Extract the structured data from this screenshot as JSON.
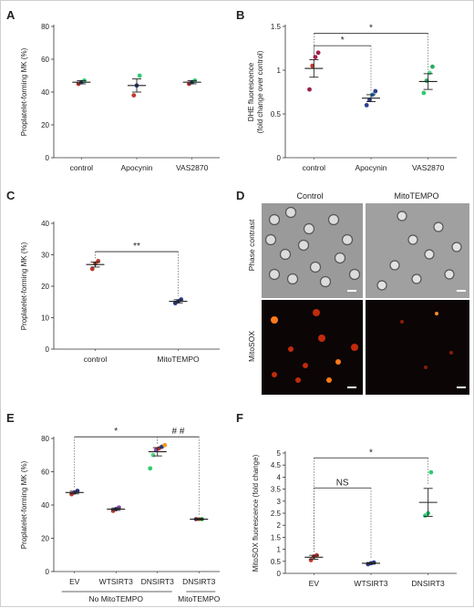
{
  "panels": {
    "A": "A",
    "B": "B",
    "C": "C",
    "D": "D",
    "E": "E",
    "F": "F"
  },
  "chart_data": [
    {
      "id": "A",
      "type": "scatter",
      "ylabel": "Proplatelet-forming MK (%)",
      "ylim": [
        0,
        80
      ],
      "yticks": [
        0,
        20,
        40,
        60,
        80
      ],
      "categories": [
        "control",
        "Apocynin",
        "VAS2870"
      ],
      "groups": [
        {
          "points": [
            45,
            46,
            47
          ],
          "colors": [
            "#c0392b",
            "#2c3e8f",
            "#2ecc71"
          ],
          "mean": 46,
          "sem": 1
        },
        {
          "points": [
            38,
            44,
            50
          ],
          "colors": [
            "#c0392b",
            "#2c3e8f",
            "#2ecc71"
          ],
          "mean": 44,
          "sem": 4
        },
        {
          "points": [
            45,
            46,
            47
          ],
          "colors": [
            "#c0392b",
            "#2c3e8f",
            "#2ecc71"
          ],
          "mean": 46,
          "sem": 1
        }
      ],
      "pointColors": [
        "#c0392b",
        "#2c3e8f",
        "#2ecc71"
      ],
      "significance": []
    },
    {
      "id": "B",
      "type": "scatter",
      "ylabel": "DHE fluorescence\n(fold change over control)",
      "ylim": [
        0,
        1.5
      ],
      "yticks": [
        0,
        0.5,
        1,
        1.5
      ],
      "categories": [
        "control",
        "Apocynin",
        "VAS2870"
      ],
      "groups": [
        {
          "points": [
            0.78,
            1.05,
            1.15,
            1.2
          ],
          "colors": [
            "#a01f4a",
            "#c0392b",
            "#a01f4a",
            "#a01f4a"
          ],
          "mean": 1.02,
          "sem": 0.1
        },
        {
          "points": [
            0.6,
            0.66,
            0.72,
            0.76
          ],
          "colors": [
            "#2c3e8f",
            "#2c3e8f",
            "#1f77b4",
            "#2c3e8f"
          ],
          "mean": 0.68,
          "sem": 0.04
        },
        {
          "points": [
            0.74,
            0.88,
            0.97,
            1.04
          ],
          "colors": [
            "#2ecc71",
            "#27ae60",
            "#58d68d",
            "#27ae60"
          ],
          "mean": 0.87,
          "sem": 0.09
        }
      ],
      "significance": [
        {
          "from": 0,
          "to": 1,
          "label": "*",
          "level": 1.28
        },
        {
          "from": 0,
          "to": 2,
          "label": "*",
          "level": 1.42
        }
      ]
    },
    {
      "id": "C",
      "type": "scatter",
      "ylabel": "Proplatelet-forming MK (%)",
      "ylim": [
        0,
        40
      ],
      "yticks": [
        0,
        10,
        20,
        30,
        40
      ],
      "categories": [
        "control",
        "MitoTEMPO"
      ],
      "groups": [
        {
          "points": [
            25.5,
            27.2,
            28.0
          ],
          "colors": [
            "#c0392b",
            "#c0392b",
            "#c0392b"
          ],
          "mean": 26.9,
          "sem": 0.8
        },
        {
          "points": [
            14.6,
            15.2,
            15.8
          ],
          "colors": [
            "#2c3e8f",
            "#2c3e8f",
            "#2c3e8f"
          ],
          "mean": 15.2,
          "sem": 0.5
        }
      ],
      "significance": [
        {
          "from": 0,
          "to": 1,
          "label": "**",
          "level": 31
        }
      ]
    },
    {
      "id": "E",
      "type": "scatter",
      "ylabel": "Proplatelet-forming MK (%)",
      "ylim": [
        0,
        80
      ],
      "yticks": [
        0,
        20,
        40,
        60,
        80
      ],
      "categories": [
        "EV",
        "WTSIRT3",
        "DNSIRT3",
        "DNSIRT3"
      ],
      "groupLabels": [
        "No MitoTEMPO",
        "MitoTEMPO"
      ],
      "groups": [
        {
          "points": [
            46.5,
            47.5,
            48.5
          ],
          "colors": [
            "#c0392b",
            "#8e44ad",
            "#2c3e8f"
          ],
          "mean": 47.5,
          "sem": 0.8
        },
        {
          "points": [
            36.5,
            37.5,
            38.5
          ],
          "colors": [
            "#c0392b",
            "#2c3e8f",
            "#8e44ad"
          ],
          "mean": 37.5,
          "sem": 0.7
        },
        {
          "points": [
            62,
            70,
            73,
            74,
            75,
            76
          ],
          "colors": [
            "#2ecc71",
            "#58d68d",
            "#8e44ad",
            "#c0392b",
            "#2c3e8f",
            "#f39c12"
          ],
          "mean": 72,
          "sem": 2.5
        },
        {
          "points": [
            31.5,
            31.5,
            31.5
          ],
          "colors": [
            "#8e44ad",
            "#f39c12",
            "#2ecc71"
          ],
          "mean": 31.5,
          "sem": 0.5
        }
      ],
      "significance": [
        {
          "from": 0,
          "to": 2,
          "label": "*",
          "level": 81
        },
        {
          "from": 2,
          "to": 3,
          "label": "# #",
          "level": 81
        }
      ]
    },
    {
      "id": "F",
      "type": "scatter",
      "ylabel": "MitoSOX fluorescence (fold change)",
      "ylim": [
        0,
        5
      ],
      "yticks": [
        0,
        0.5,
        1,
        1.5,
        2,
        2.5,
        3,
        3.5,
        4,
        4.5,
        5
      ],
      "categories": [
        "EV",
        "WTSIRT3",
        "DNSIRT3"
      ],
      "groups": [
        {
          "points": [
            0.55,
            0.7,
            0.75
          ],
          "colors": [
            "#c0392b",
            "#c0392b",
            "#c0392b"
          ],
          "mean": 0.67,
          "sem": 0.08
        },
        {
          "points": [
            0.38,
            0.42,
            0.45
          ],
          "colors": [
            "#2c3e8f",
            "#2c3e8f",
            "#2c3e8f"
          ],
          "mean": 0.42,
          "sem": 0.03
        },
        {
          "points": [
            2.4,
            2.5,
            4.2
          ],
          "colors": [
            "#2ecc71",
            "#2ecc71",
            "#2ecc71"
          ],
          "mean": 2.95,
          "sem": 0.58
        }
      ],
      "significance": [
        {
          "from": 0,
          "to": 1,
          "label": "NS",
          "level": 3.55
        },
        {
          "from": 0,
          "to": 2,
          "label": "*",
          "level": 4.8
        }
      ]
    }
  ],
  "microscopy": {
    "col_headers": [
      "Control",
      "MitoTEMPO"
    ],
    "row_labels": [
      "Phase contrast",
      "MitoSOX"
    ]
  }
}
